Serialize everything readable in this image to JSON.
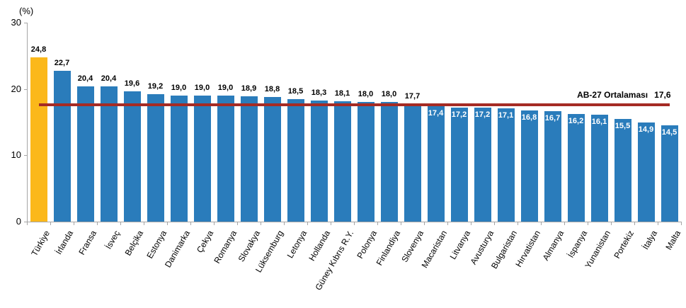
{
  "chart_data": {
    "type": "bar",
    "title": "",
    "xlabel": "",
    "ylabel": "(%)",
    "ylim": [
      0,
      30
    ],
    "yticks": [
      0,
      10,
      20,
      30
    ],
    "grid": "off",
    "legend": "none",
    "categories": [
      "Türkiye",
      "İrlanda",
      "Fransa",
      "İsveç",
      "Belçika",
      "Estonya",
      "Danimarka",
      "Çekya",
      "Romanya",
      "Slovakya",
      "Lüksemburg",
      "Letonya",
      "Hollanda",
      "Güney Kıbrıs R.Y.",
      "Polonya",
      "Finlandiya",
      "Slovenya",
      "Macaristan",
      "Litvanya",
      "Avusturya",
      "Bulgaristan",
      "Hırvatistan",
      "Almanya",
      "İspanya",
      "Yunanistan",
      "Portekiz",
      "İtalya",
      "Malta"
    ],
    "values": [
      24.8,
      22.7,
      20.4,
      20.4,
      19.6,
      19.2,
      19.0,
      19.0,
      19.0,
      18.9,
      18.8,
      18.5,
      18.3,
      18.1,
      18.0,
      18.0,
      17.7,
      17.4,
      17.2,
      17.2,
      17.1,
      16.8,
      16.7,
      16.2,
      16.1,
      15.5,
      14.9,
      14.5
    ],
    "value_labels": [
      "24,8",
      "22,7",
      "20,4",
      "20,4",
      "19,6",
      "19,2",
      "19,0",
      "19,0",
      "19,0",
      "18,9",
      "18,8",
      "18,5",
      "18,3",
      "18,1",
      "18,0",
      "18,0",
      "17,7",
      "17,4",
      "17,2",
      "17,2",
      "17,1",
      "16,8",
      "16,7",
      "16,2",
      "16,1",
      "15,5",
      "14,9",
      "14,5"
    ],
    "highlight_index": 0,
    "ref_line": {
      "label": "AB-27 Ortalaması",
      "value": 17.6,
      "value_label": "17,6"
    },
    "colors": {
      "bar": "#2A7CBB",
      "highlight": "#FBB81A",
      "ref_line": "#A52B24",
      "axis": "#A6A6A6",
      "value_label_outside": "#000000",
      "value_label_inside": "#FFFFFF"
    }
  }
}
